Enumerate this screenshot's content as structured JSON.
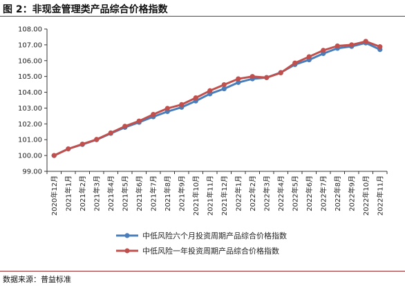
{
  "page": {
    "title": "图 2：非现金管理类产品综合价格指数",
    "source": "数据来源：普益标准"
  },
  "chart_data": {
    "type": "line",
    "title": "图 2：非现金管理类产品综合价格指数",
    "xlabel": "",
    "ylabel": "",
    "ylim": [
      99.0,
      108.0
    ],
    "yticks": [
      "108.00",
      "107.00",
      "106.00",
      "105.00",
      "104.00",
      "103.00",
      "102.00",
      "101.00",
      "100.00",
      "99.00"
    ],
    "legend_position": "bottom",
    "grid": false,
    "categories": [
      "2020年12月",
      "2021年1月",
      "2021年2月",
      "2021年3月",
      "2021年4月",
      "2021年5月",
      "2021年6月",
      "2021年7月",
      "2021年8月",
      "2021年9月",
      "2021年10月",
      "2021年11月",
      "2021年12月",
      "2022年1月",
      "2022年2月",
      "2022年3月",
      "2022年4月",
      "2022年5月",
      "2022年6月",
      "2022年7月",
      "2022年8月",
      "2022年9月",
      "2022年10月",
      "2022年11月"
    ],
    "series": [
      {
        "name": "中低风险六个月投资周期产品综合价格指数",
        "color": "#4a7ebb",
        "values": [
          100.0,
          100.42,
          100.7,
          101.0,
          101.4,
          101.78,
          102.1,
          102.45,
          102.78,
          103.05,
          103.45,
          103.9,
          104.22,
          104.62,
          104.85,
          104.93,
          105.25,
          105.75,
          106.05,
          106.45,
          106.78,
          106.9,
          107.12,
          106.7
        ]
      },
      {
        "name": "中低风险一年投资周期产品综合价格指数",
        "color": "#c0504d",
        "values": [
          100.0,
          100.42,
          100.72,
          101.02,
          101.43,
          101.85,
          102.18,
          102.6,
          102.98,
          103.22,
          103.65,
          104.1,
          104.48,
          104.85,
          105.0,
          104.93,
          105.23,
          105.85,
          106.25,
          106.65,
          106.93,
          107.0,
          107.22,
          106.88
        ]
      }
    ]
  }
}
